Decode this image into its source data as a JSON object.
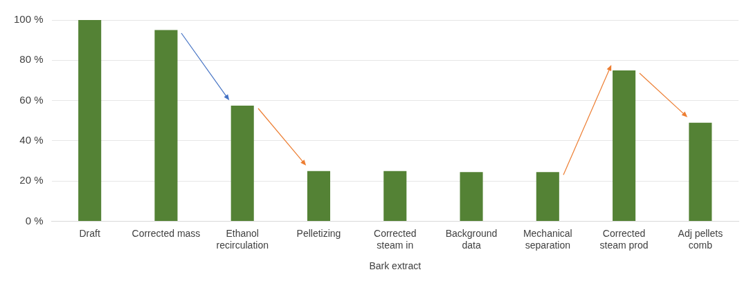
{
  "chart_data": {
    "type": "bar",
    "xlabel": "Bark extract",
    "categories": [
      "Draft",
      "Corrected mass",
      "Ethanol recirculation",
      "Pelletizing",
      "Corrected steam in",
      "Background data",
      "Mechanical separation",
      "Corrected steam prod",
      "Adj pellets comb"
    ],
    "values": [
      100,
      95,
      57.5,
      25,
      25,
      24.5,
      24.5,
      75,
      49
    ],
    "color": "#548235",
    "ylim": [
      0,
      100
    ],
    "yticks": [
      {
        "value": 0,
        "label": "0 %"
      },
      {
        "value": 20,
        "label": "20 %"
      },
      {
        "value": 40,
        "label": "40 %"
      },
      {
        "value": 60,
        "label": "60 %"
      },
      {
        "value": 80,
        "label": "80 %"
      },
      {
        "value": 100,
        "label": "100 %"
      }
    ],
    "grid": "y",
    "legend": false
  }
}
